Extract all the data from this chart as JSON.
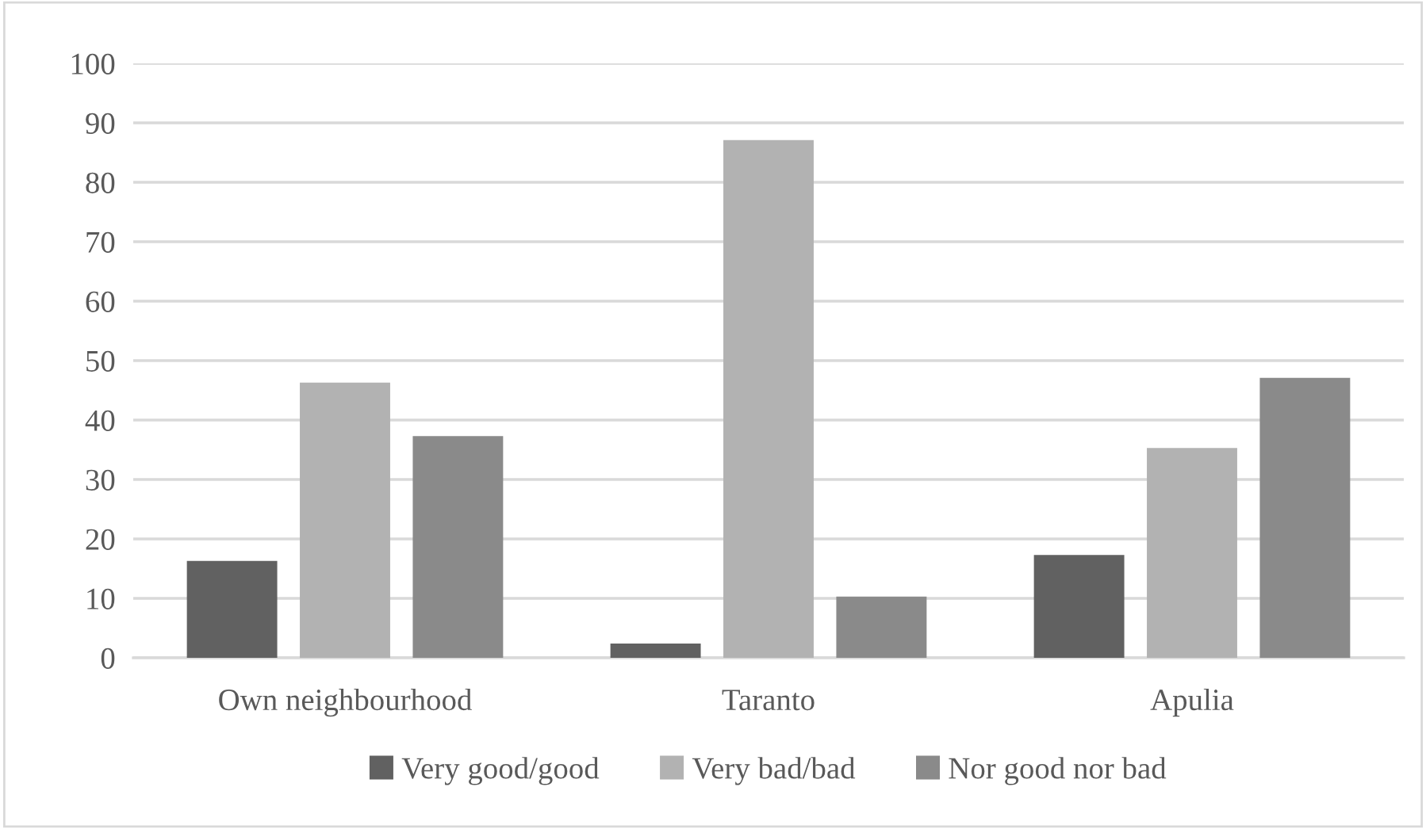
{
  "chart_data": {
    "type": "bar",
    "categories": [
      "Own neighbourhood",
      "Taranto",
      "Apulia"
    ],
    "series": [
      {
        "name": "Very good/good",
        "color": "#616161",
        "values": [
          16.3,
          2.4,
          17.3
        ]
      },
      {
        "name": "Very bad/bad",
        "color": "#b2b2b2",
        "values": [
          46.3,
          87.1,
          35.3
        ]
      },
      {
        "name": "Nor good nor bad",
        "color": "#8a8a8a",
        "values": [
          37.3,
          10.3,
          47.1
        ]
      }
    ],
    "ylim": [
      0,
      100
    ],
    "yticks": [
      0,
      10,
      20,
      30,
      40,
      50,
      60,
      70,
      80,
      90,
      100
    ],
    "grid": "y",
    "legend": "bottom"
  }
}
